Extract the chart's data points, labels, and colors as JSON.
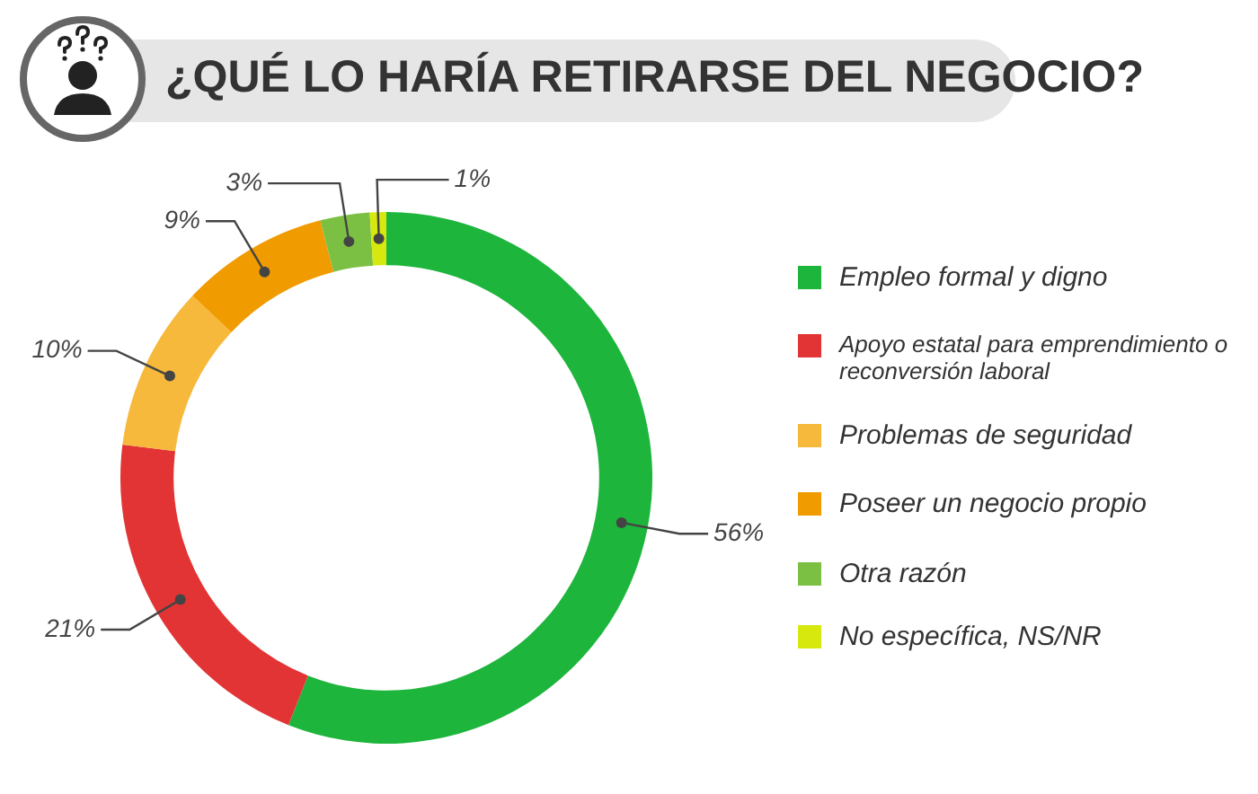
{
  "chart_data": {
    "type": "donut",
    "title": "¿QUÉ LO HARÍA RETIRARSE DEL NEGOCIO?",
    "categories": [
      "Empleo formal y digno",
      "Apoyo estatal para emprendimiento o reconversión laboral",
      "Problemas de seguridad",
      "Poseer un negocio propio",
      "Otra razón",
      "No específica, NS/NR"
    ],
    "values": [
      56,
      21,
      10,
      9,
      3,
      1
    ],
    "colors": [
      "#1db53c",
      "#e23434",
      "#f6b93b",
      "#f09b00",
      "#7cc043",
      "#d6e80e"
    ],
    "value_labels": [
      "56%",
      "21%",
      "10%",
      "9%",
      "3%",
      "1%"
    ],
    "legend": "right"
  }
}
